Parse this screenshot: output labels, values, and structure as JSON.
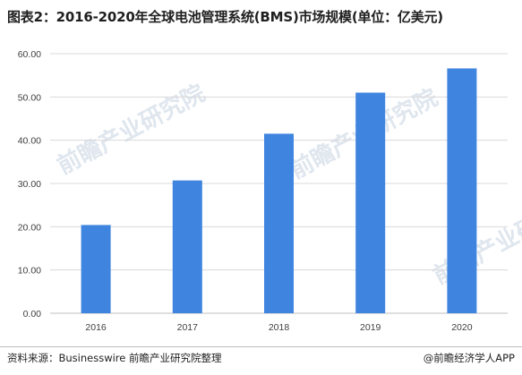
{
  "title": "图表2：2016-2020年全球电池管理系统(BMS)市场规模(单位：亿美元)",
  "source": "资料来源：Businesswire 前瞻产业研究院整理",
  "brand": "@前瞻经济学人APP",
  "watermark_text": "前瞻产业研究院",
  "colors": {
    "bar": "#3f85e0",
    "gridline": "#d9d9d9",
    "axis": "#bfbfbf"
  },
  "chart_data": {
    "type": "bar",
    "title": "图表2：2016-2020年全球电池管理系统(BMS)市场规模(单位：亿美元)",
    "xlabel": "",
    "ylabel": "",
    "categories": [
      "2016",
      "2017",
      "2018",
      "2019",
      "2020"
    ],
    "values": [
      20.4,
      30.7,
      41.5,
      51.0,
      56.6
    ],
    "ylim": [
      0,
      60
    ],
    "yticks": [
      "0.00",
      "10.00",
      "20.00",
      "30.00",
      "40.00",
      "50.00",
      "60.00"
    ],
    "grid": true,
    "legend": "none"
  }
}
